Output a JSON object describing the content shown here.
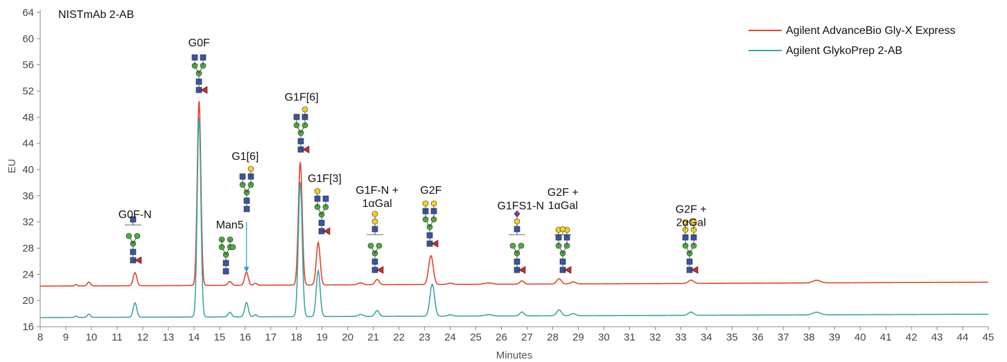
{
  "chart_data": {
    "type": "line",
    "title": "NISTmAb 2-AB",
    "xlabel": "Minutes",
    "ylabel": "EU",
    "xlim": [
      8,
      45
    ],
    "ylim": [
      16,
      64
    ],
    "x_ticks": [
      "8",
      "9",
      "10",
      "11",
      "12",
      "13",
      "14",
      "15",
      "16",
      "17",
      "18",
      "19",
      "20",
      "21",
      "22",
      "23",
      "24",
      "25",
      "26",
      "27",
      "28",
      "29",
      "30",
      "31",
      "32",
      "33",
      "34",
      "35",
      "36",
      "37",
      "38",
      "39",
      "40",
      "41",
      "42",
      "43",
      "44",
      "45"
    ],
    "y_ticks": [
      "16",
      "20",
      "24",
      "28",
      "32",
      "36",
      "40",
      "44",
      "48",
      "52",
      "56",
      "60",
      "64"
    ],
    "legend": "top-right",
    "grid": false,
    "series": [
      {
        "name": "Agilent AdvanceBio Gly-X Express",
        "color": "#e0432a",
        "baseline_start": 22.2,
        "baseline_end": 22.8,
        "peaks": [
          {
            "x": 9.4,
            "height": 0.2,
            "width": 0.05
          },
          {
            "x": 9.9,
            "height": 0.6,
            "width": 0.06
          },
          {
            "x": 11.7,
            "height": 2.0,
            "width": 0.07
          },
          {
            "x": 14.2,
            "height": 28.3,
            "width": 0.07
          },
          {
            "x": 15.4,
            "height": 0.6,
            "width": 0.07
          },
          {
            "x": 16.05,
            "height": 2.0,
            "width": 0.07
          },
          {
            "x": 16.4,
            "height": 0.3,
            "width": 0.06
          },
          {
            "x": 18.15,
            "height": 18.8,
            "width": 0.075
          },
          {
            "x": 18.85,
            "height": 6.5,
            "width": 0.075
          },
          {
            "x": 20.5,
            "height": 0.3,
            "width": 0.1
          },
          {
            "x": 21.15,
            "height": 0.8,
            "width": 0.08
          },
          {
            "x": 23.25,
            "height": 4.4,
            "width": 0.09
          },
          {
            "x": 24.0,
            "height": 0.2,
            "width": 0.1
          },
          {
            "x": 25.5,
            "height": 0.2,
            "width": 0.15
          },
          {
            "x": 26.8,
            "height": 0.5,
            "width": 0.08
          },
          {
            "x": 28.25,
            "height": 0.8,
            "width": 0.09
          },
          {
            "x": 28.8,
            "height": 0.3,
            "width": 0.1
          },
          {
            "x": 33.4,
            "height": 0.5,
            "width": 0.1
          },
          {
            "x": 38.3,
            "height": 0.4,
            "width": 0.15
          }
        ]
      },
      {
        "name": "Agilent GlykoPrep 2-AB",
        "color": "#3aa5a0",
        "baseline_start": 17.4,
        "baseline_end": 17.9,
        "peaks": [
          {
            "x": 9.4,
            "height": 0.2,
            "width": 0.05
          },
          {
            "x": 9.9,
            "height": 0.5,
            "width": 0.06
          },
          {
            "x": 11.7,
            "height": 2.2,
            "width": 0.07
          },
          {
            "x": 14.2,
            "height": 30.6,
            "width": 0.07
          },
          {
            "x": 15.4,
            "height": 0.7,
            "width": 0.07
          },
          {
            "x": 16.05,
            "height": 2.2,
            "width": 0.07
          },
          {
            "x": 16.4,
            "height": 0.3,
            "width": 0.06
          },
          {
            "x": 18.15,
            "height": 20.6,
            "width": 0.075
          },
          {
            "x": 18.85,
            "height": 7.0,
            "width": 0.075
          },
          {
            "x": 20.5,
            "height": 0.3,
            "width": 0.1
          },
          {
            "x": 21.15,
            "height": 0.9,
            "width": 0.08
          },
          {
            "x": 23.3,
            "height": 4.9,
            "width": 0.09
          },
          {
            "x": 24.0,
            "height": 0.2,
            "width": 0.1
          },
          {
            "x": 25.5,
            "height": 0.2,
            "width": 0.15
          },
          {
            "x": 26.8,
            "height": 0.6,
            "width": 0.08
          },
          {
            "x": 28.25,
            "height": 0.9,
            "width": 0.09
          },
          {
            "x": 28.8,
            "height": 0.3,
            "width": 0.1
          },
          {
            "x": 33.4,
            "height": 0.5,
            "width": 0.1
          },
          {
            "x": 38.3,
            "height": 0.4,
            "width": 0.15
          }
        ]
      }
    ],
    "annotations": [
      {
        "text": "G0F-N",
        "x": 11.7,
        "y": 32.6
      },
      {
        "text": "G0F",
        "x": 14.2,
        "y": 58.8
      },
      {
        "text": "Man5",
        "x": 15.4,
        "y": 31.0
      },
      {
        "text": "G1[6]",
        "x": 16.0,
        "y": 41.5
      },
      {
        "text": "G1F[6]",
        "x": 18.2,
        "y": 50.5
      },
      {
        "text": "G1F[3]",
        "x": 19.1,
        "y": 38.1
      },
      {
        "text": "G1F-N +\n1αGal",
        "x": 21.15,
        "y": 36.3
      },
      {
        "text": "G2F",
        "x": 23.25,
        "y": 36.3
      },
      {
        "text": "G1FS1-N",
        "x": 26.75,
        "y": 33.9
      },
      {
        "text": "G2F +\n1αGal",
        "x": 28.4,
        "y": 36.0
      },
      {
        "text": "G2F +\n2αGal",
        "x": 33.4,
        "y": 33.4
      }
    ],
    "arrow": {
      "x": 16.05,
      "y_from": 32.0,
      "y_to": 24.3,
      "color": "#2e9fd8"
    }
  }
}
